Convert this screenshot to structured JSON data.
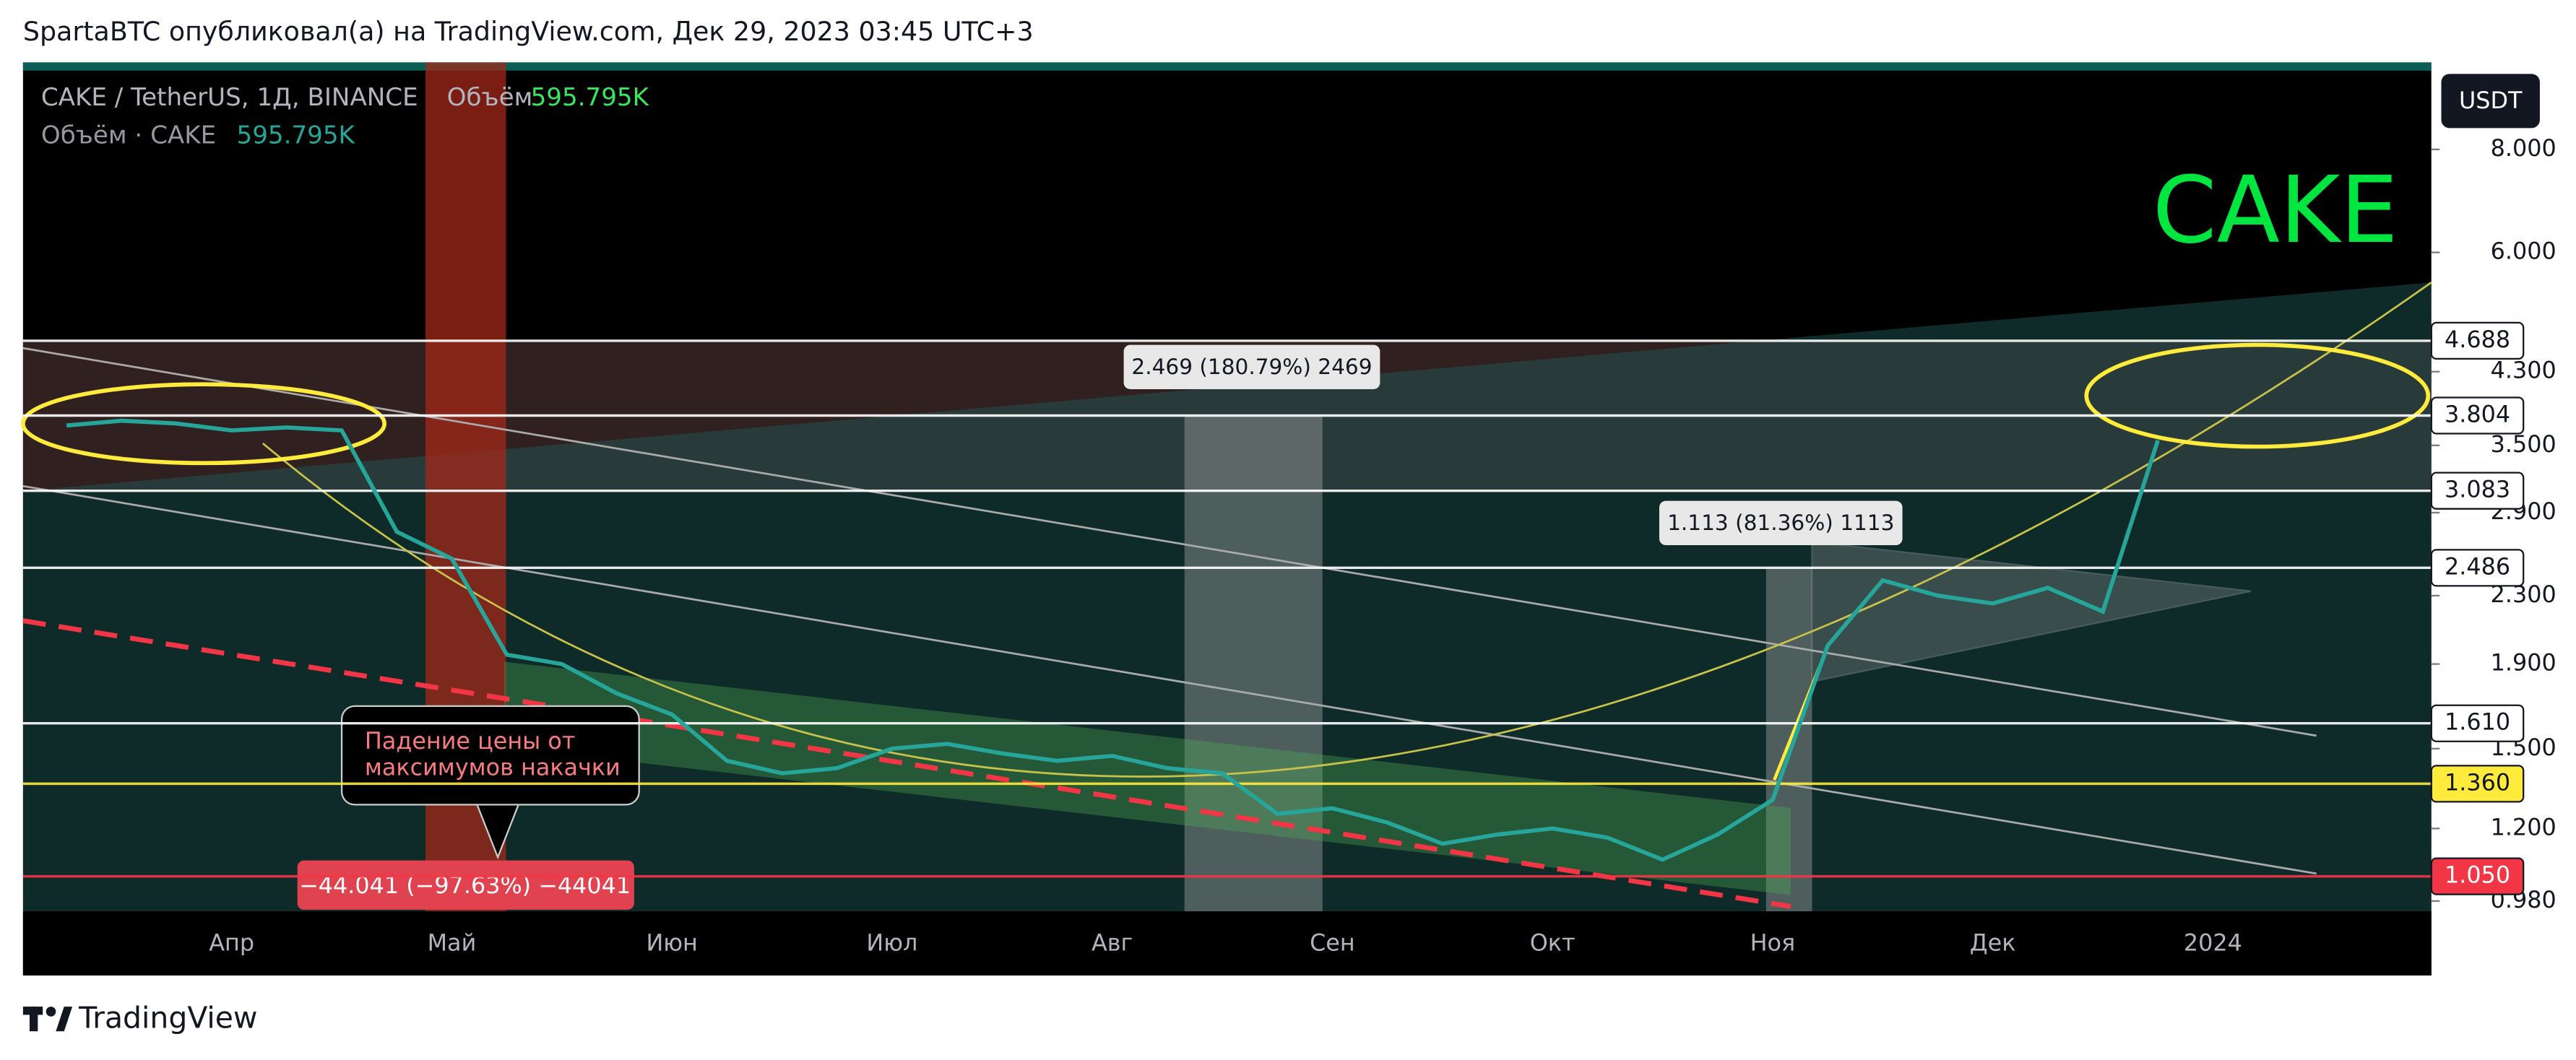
{
  "header": {
    "publisher": "SpartaBTC опубликовал(а) на TradingView.com, Дек 29, 2023 03:45 UTC+3"
  },
  "footer": {
    "brand": "TradingView"
  },
  "chart_data": {
    "type": "line",
    "symbol": "CAKE / TetherUS, 1Д, BINANCE",
    "volume_label": "Объём",
    "volume_value": "595.795K",
    "volume_study": "Объём · CAKE",
    "volume_study_value": "595.795K",
    "currency": "USDT",
    "title": "CAKE",
    "log_scale": true,
    "color": "#26a69a",
    "categories": [
      null,
      null,
      null,
      "Апр",
      null,
      null,
      null,
      "Май",
      null,
      null,
      null,
      "Июн",
      null,
      null,
      null,
      "Июл",
      null,
      null,
      null,
      "Авг",
      null,
      null,
      null,
      "Сен",
      null,
      null,
      null,
      "Окт",
      null,
      null,
      null,
      "Ноя",
      null,
      null,
      null,
      "Дек",
      null,
      null,
      null,
      "2024"
    ],
    "values": [
      3.7,
      3.75,
      3.72,
      3.65,
      3.68,
      3.65,
      2.75,
      2.55,
      1.95,
      1.9,
      1.75,
      1.65,
      1.45,
      1.4,
      1.42,
      1.5,
      1.52,
      1.48,
      1.45,
      1.47,
      1.42,
      1.4,
      1.25,
      1.27,
      1.22,
      1.15,
      1.18,
      1.2,
      1.17,
      1.1,
      1.18,
      1.3,
      2.0,
      2.4,
      2.3,
      2.25,
      2.35,
      2.2,
      3.55,
      null
    ],
    "ylim": [
      0.952,
      9.88
    ],
    "yticks": [
      {
        "value": 0.98,
        "label": "0.980"
      },
      {
        "value": 1.2,
        "label": "1.200"
      },
      {
        "value": 1.5,
        "label": "1.500"
      },
      {
        "value": 1.9,
        "label": "1.900"
      },
      {
        "value": 2.3,
        "label": "2.300"
      },
      {
        "value": 2.9,
        "label": "2.900"
      },
      {
        "value": 3.5,
        "label": "3.500"
      },
      {
        "value": 4.3,
        "label": "4.300"
      },
      {
        "value": 6,
        "label": "6.000"
      },
      {
        "value": 8,
        "label": "8.000"
      }
    ],
    "levels": [
      {
        "value": 4.688,
        "label": "4.688",
        "color": "#ffffff"
      },
      {
        "value": 3.804,
        "label": "3.804",
        "color": "#ffffff"
      },
      {
        "value": 3.083,
        "label": "3.083",
        "color": "#ffffff"
      },
      {
        "value": 2.486,
        "label": "2.486",
        "color": "#ffffff"
      },
      {
        "value": 1.61,
        "label": "1.610",
        "color": "#ffffff"
      },
      {
        "value": 1.36,
        "label": "1.360",
        "color": "#ffeb3b"
      },
      {
        "value": 1.05,
        "label": "1.050",
        "color": "#f23645"
      }
    ],
    "annotations": [
      "2.469 (180.79%) 2469",
      "1.113 (81.36%) 1113",
      "−44.041 (−97.63%) −44041"
    ],
    "callout": [
      "Падение цены от",
      "максимумов накачки"
    ]
  }
}
